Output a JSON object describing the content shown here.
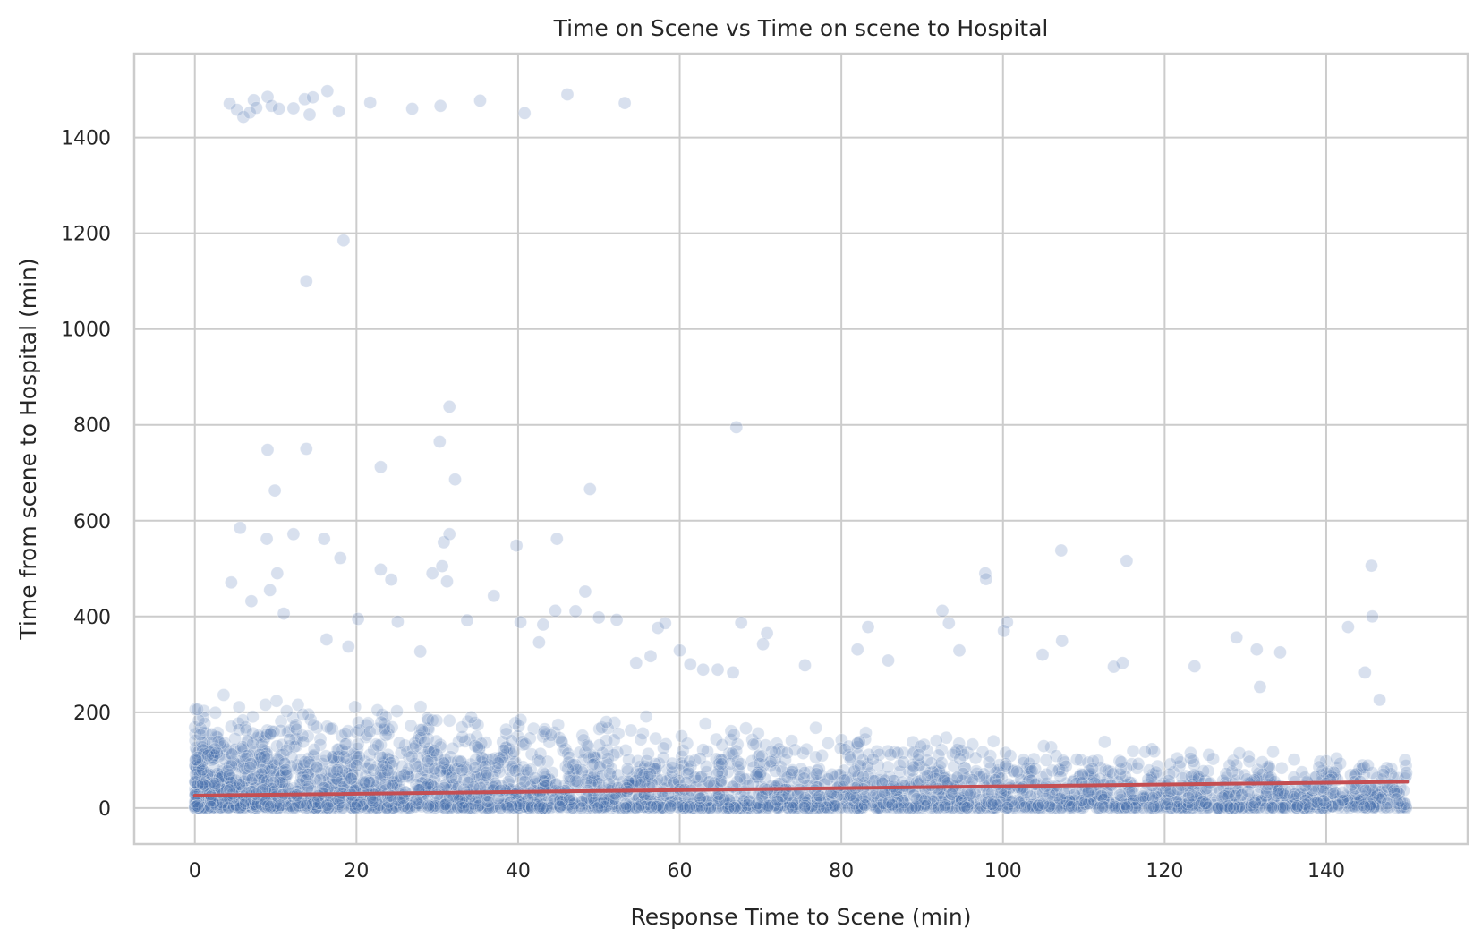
{
  "chart_data": {
    "type": "scatter",
    "title": "Time on Scene vs Time on scene to Hospital",
    "xlabel": "Response Time to Scene (min)",
    "ylabel": "Time from scene to Hospital (min)",
    "xlim": [
      -7.5,
      157.5
    ],
    "ylim": [
      -75,
      1575
    ],
    "xticks": [
      0,
      20,
      40,
      60,
      80,
      100,
      120,
      140
    ],
    "yticks": [
      0,
      200,
      400,
      600,
      800,
      1000,
      1200,
      1400
    ],
    "grid": true,
    "legend": "none",
    "colors": {
      "points": "#4c72b0",
      "trend": "#c44e52"
    },
    "trend_line": {
      "x": [
        0,
        150
      ],
      "y": [
        26,
        55
      ]
    },
    "outliers": [
      [
        4.3,
        1471
      ],
      [
        5.2,
        1458
      ],
      [
        6.0,
        1443
      ],
      [
        6.8,
        1452
      ],
      [
        7.3,
        1478
      ],
      [
        7.6,
        1462
      ],
      [
        9.0,
        1485
      ],
      [
        9.5,
        1466
      ],
      [
        10.4,
        1460
      ],
      [
        12.2,
        1461
      ],
      [
        13.6,
        1480
      ],
      [
        14.6,
        1484
      ],
      [
        14.2,
        1448
      ],
      [
        16.4,
        1497
      ],
      [
        17.8,
        1455
      ],
      [
        21.7,
        1473
      ],
      [
        26.9,
        1460
      ],
      [
        30.4,
        1466
      ],
      [
        35.3,
        1477
      ],
      [
        40.8,
        1451
      ],
      [
        46.1,
        1490
      ],
      [
        53.2,
        1472
      ],
      [
        18.4,
        1185
      ],
      [
        13.8,
        1100
      ],
      [
        31.5,
        838
      ],
      [
        67.0,
        795
      ],
      [
        9.0,
        748
      ],
      [
        13.8,
        750
      ],
      [
        30.3,
        765
      ],
      [
        23.0,
        712
      ],
      [
        32.2,
        686
      ],
      [
        9.9,
        663
      ],
      [
        48.9,
        666
      ],
      [
        5.6,
        585
      ],
      [
        8.9,
        562
      ],
      [
        12.2,
        572
      ],
      [
        16.0,
        562
      ],
      [
        18.0,
        522
      ],
      [
        30.8,
        555
      ],
      [
        31.5,
        572
      ],
      [
        44.8,
        562
      ],
      [
        39.8,
        548
      ],
      [
        4.5,
        471
      ],
      [
        10.2,
        490
      ],
      [
        23.0,
        498
      ],
      [
        24.3,
        477
      ],
      [
        29.4,
        490
      ],
      [
        30.6,
        505
      ],
      [
        31.2,
        473
      ],
      [
        48.3,
        452
      ],
      [
        107.2,
        538
      ],
      [
        115.3,
        516
      ],
      [
        145.6,
        506
      ],
      [
        97.8,
        490
      ],
      [
        97.9,
        478
      ],
      [
        37.0,
        443
      ],
      [
        43.1,
        383
      ],
      [
        44.6,
        412
      ],
      [
        47.1,
        411
      ],
      [
        50.0,
        398
      ],
      [
        52.2,
        393
      ],
      [
        33.7,
        392
      ],
      [
        25.1,
        389
      ],
      [
        57.3,
        376
      ],
      [
        58.2,
        386
      ],
      [
        67.6,
        387
      ],
      [
        70.8,
        365
      ],
      [
        83.3,
        378
      ],
      [
        92.5,
        412
      ],
      [
        93.3,
        386
      ],
      [
        100.5,
        388
      ],
      [
        100.1,
        370
      ],
      [
        142.7,
        378
      ],
      [
        145.7,
        400
      ],
      [
        128.9,
        356
      ],
      [
        131.4,
        331
      ],
      [
        134.3,
        325
      ],
      [
        82.0,
        331
      ],
      [
        94.6,
        329
      ],
      [
        104.9,
        320
      ],
      [
        107.3,
        349
      ],
      [
        114.8,
        303
      ],
      [
        113.7,
        295
      ],
      [
        70.3,
        342
      ],
      [
        61.3,
        300
      ],
      [
        64.7,
        289
      ],
      [
        66.6,
        283
      ],
      [
        75.5,
        298
      ],
      [
        85.8,
        308
      ],
      [
        123.7,
        296
      ],
      [
        131.8,
        253
      ],
      [
        144.8,
        283
      ],
      [
        146.6,
        226
      ],
      [
        7.0,
        432
      ],
      [
        9.3,
        455
      ],
      [
        11.0,
        406
      ],
      [
        20.2,
        395
      ],
      [
        16.3,
        352
      ],
      [
        19.0,
        337
      ],
      [
        27.9,
        327
      ],
      [
        40.3,
        388
      ],
      [
        42.6,
        346
      ],
      [
        54.6,
        303
      ],
      [
        56.4,
        317
      ],
      [
        60.0,
        329
      ],
      [
        62.9,
        289
      ]
    ]
  }
}
